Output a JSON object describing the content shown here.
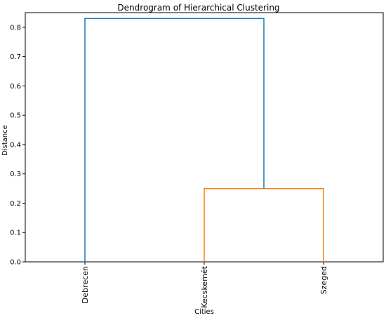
{
  "chart_data": {
    "type": "dendrogram",
    "title": "Dendrogram of Hierarchical Clustering",
    "xlabel": "Cities",
    "ylabel": "Distance",
    "ylim": [
      0.0,
      0.85
    ],
    "yticks": [
      "0.0",
      "0.1",
      "0.2",
      "0.3",
      "0.4",
      "0.5",
      "0.6",
      "0.7",
      "0.8"
    ],
    "leaves": [
      "Debrecen",
      "Kecskemét",
      "Szeged"
    ],
    "merges": [
      {
        "left": "Kecskemét",
        "right": "Szeged",
        "distance": 0.25,
        "color": "#ff7f0e"
      },
      {
        "left": "Debrecen",
        "right": "Kecskemét+Szeged",
        "distance": 0.83,
        "color": "#1f77b4"
      }
    ],
    "grid": false,
    "legend": false
  }
}
